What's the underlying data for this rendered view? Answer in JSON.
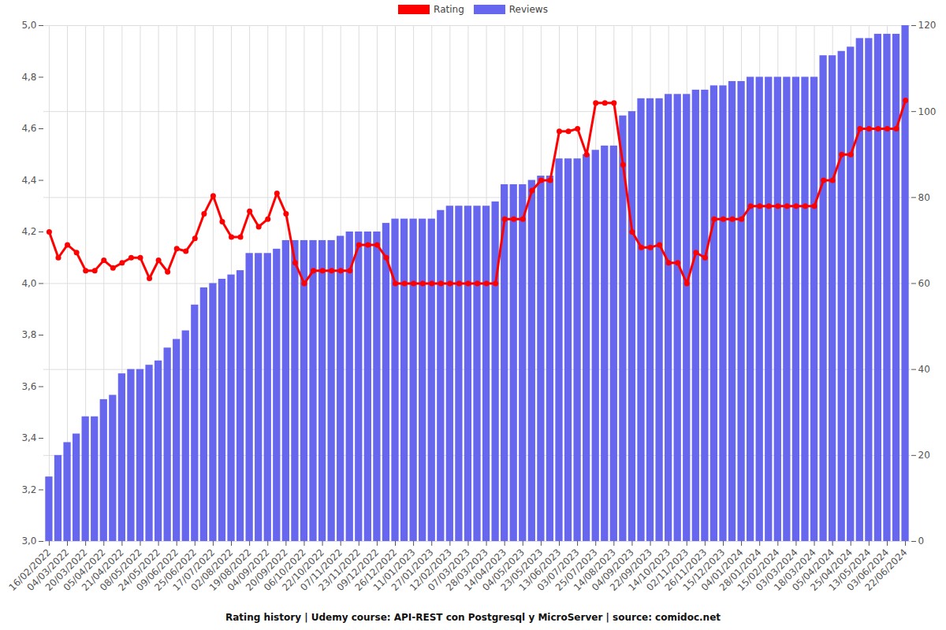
{
  "chart_data": {
    "type": "bar",
    "title": "Rating history | Udemy course: API-REST con Postgresql y MicroServer | source: comidoc.net",
    "categories": [
      "16/02/2022",
      null,
      "04/03/2022",
      null,
      "20/03/2022",
      null,
      "05/04/2022",
      null,
      "21/04/2022",
      null,
      "08/05/2022",
      null,
      "24/05/2022",
      null,
      "09/06/2022",
      null,
      "25/06/2022",
      null,
      "17/07/2022",
      null,
      "02/08/2022",
      null,
      "19/08/2022",
      null,
      "04/09/2022",
      null,
      "20/09/2022",
      null,
      "06/10/2022",
      null,
      "22/10/2022",
      null,
      "07/11/2022",
      null,
      "23/11/2022",
      null,
      "09/12/2022",
      null,
      "26/12/2022",
      null,
      "11/01/2023",
      null,
      "27/01/2023",
      null,
      "12/02/2023",
      null,
      "07/03/2023",
      null,
      "28/03/2023",
      null,
      "14/04/2023",
      null,
      "04/05/2023",
      null,
      "23/05/2023",
      null,
      "13/06/2023",
      null,
      "03/07/2023",
      null,
      "25/07/2023",
      null,
      "14/08/2023",
      null,
      "04/09/2023",
      null,
      "22/09/2023",
      null,
      "14/10/2023",
      null,
      "02/11/2023",
      null,
      "26/11/2023",
      null,
      "15/12/2023",
      null,
      "04/01/2024",
      null,
      "28/01/2024",
      null,
      "15/02/2024",
      null,
      "03/03/2024",
      null,
      "18/03/2024",
      null,
      "05/04/2024",
      null,
      "25/04/2024",
      null,
      "13/05/2024",
      null,
      "03/06/2024",
      null,
      "22/06/2024"
    ],
    "series": [
      {
        "name": "Rating",
        "type": "line",
        "color": "#ff0000",
        "marker": "circle",
        "values": [
          4.2,
          4.1,
          4.15,
          4.12,
          4.05,
          4.05,
          4.09,
          4.06,
          4.08,
          4.1,
          4.1,
          4.02,
          4.09,
          4.045,
          4.135,
          4.125,
          4.175,
          4.27,
          4.34,
          4.24,
          4.18,
          4.18,
          4.28,
          4.22,
          4.25,
          4.35,
          4.27,
          4.08,
          4.0,
          4.05,
          4.05,
          4.05,
          4.05,
          4.05,
          4.15,
          4.15,
          4.15,
          4.1,
          4.0,
          4.0,
          4.0,
          4.0,
          4.0,
          4.0,
          4.0,
          4.0,
          4.0,
          4.0,
          4.0,
          4.0,
          4.25,
          4.25,
          4.25,
          4.36,
          4.4,
          4.4,
          4.59,
          4.59,
          4.6,
          4.5,
          4.7,
          4.7,
          4.7,
          4.46,
          4.2,
          4.14,
          4.14,
          4.15,
          4.08,
          4.08,
          4.0,
          4.12,
          4.1,
          4.25,
          4.25,
          4.25,
          4.25,
          4.3,
          4.3,
          4.3,
          4.3,
          4.3,
          4.3,
          4.3,
          4.3,
          4.4,
          4.4,
          4.5,
          4.5,
          4.6,
          4.6,
          4.6,
          4.6,
          4.6,
          4.71
        ]
      },
      {
        "name": "Reviews",
        "type": "bar",
        "color": "#6666ee",
        "axis": "y2",
        "values": [
          15,
          20,
          23,
          25,
          29,
          29,
          33,
          34,
          39,
          40,
          40,
          41,
          42,
          45,
          47,
          49,
          55,
          59,
          60,
          61,
          62,
          63,
          67,
          67,
          67,
          68,
          70,
          70,
          70,
          70,
          70,
          70,
          71,
          72,
          72,
          72,
          72,
          74,
          75,
          75,
          75,
          75,
          75,
          77,
          78,
          78,
          78,
          78,
          78,
          79,
          83,
          83,
          83,
          84,
          85,
          85,
          89,
          89,
          89,
          90,
          91,
          92,
          92,
          99,
          100,
          103,
          103,
          103,
          104,
          104,
          104,
          105,
          105,
          106,
          106,
          107,
          107,
          108,
          108,
          108,
          108,
          108,
          108,
          108,
          108,
          113,
          113,
          114,
          115,
          117,
          117,
          118,
          118,
          118,
          120
        ]
      }
    ],
    "ylim": [
      3,
      5
    ],
    "yticks": [
      {
        "value": 3,
        "label": "3,0"
      },
      {
        "value": 3.2,
        "label": "3,2"
      },
      {
        "value": 3.4,
        "label": "3,4"
      },
      {
        "value": 3.6,
        "label": "3,6"
      },
      {
        "value": 3.8,
        "label": "3,8"
      },
      {
        "value": 4,
        "label": "4,0"
      },
      {
        "value": 4.2,
        "label": "4,2"
      },
      {
        "value": 4.4,
        "label": "4,4"
      },
      {
        "value": 4.6,
        "label": "4,6"
      },
      {
        "value": 4.8,
        "label": "4,8"
      },
      {
        "value": 5,
        "label": "5,0"
      }
    ],
    "y2lim": [
      0,
      120
    ],
    "y2ticks": [
      0,
      20,
      40,
      60,
      80,
      100,
      120
    ],
    "grid": true,
    "legend": "top"
  }
}
